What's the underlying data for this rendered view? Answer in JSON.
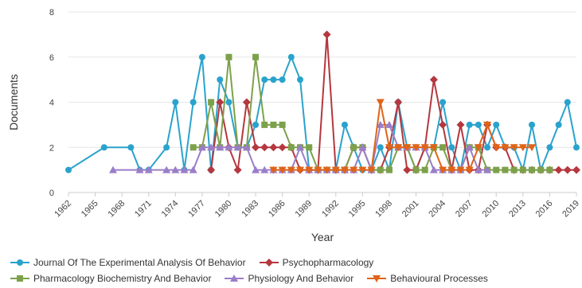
{
  "chart_data": {
    "type": "line",
    "xlabel": "Year",
    "ylabel": "Documents",
    "xlim": [
      1962,
      2019
    ],
    "ylim": [
      0,
      8
    ],
    "yticks": [
      0,
      2,
      4,
      6,
      8
    ],
    "xticks": [
      "1962",
      "1965",
      "1968",
      "1971",
      "1974",
      "1977",
      "1980",
      "1983",
      "1986",
      "1989",
      "1992",
      "1995",
      "1998",
      "2001",
      "2004",
      "2007",
      "2010",
      "2013",
      "2016",
      "2019"
    ],
    "grid": true,
    "legend_position": "bottom",
    "series": [
      {
        "name": "Journal Of The Experimental Analysis Of Behavior",
        "color": "#2aa3cc",
        "marker": "circle",
        "points": [
          [
            1962,
            1
          ],
          [
            1966,
            2
          ],
          [
            1969,
            2
          ],
          [
            1970,
            1
          ],
          [
            1971,
            1
          ],
          [
            1973,
            2
          ],
          [
            1974,
            4
          ],
          [
            1975,
            1
          ],
          [
            1976,
            4
          ],
          [
            1977,
            6
          ],
          [
            1978,
            1
          ],
          [
            1979,
            5
          ],
          [
            1980,
            4
          ],
          [
            1981,
            2
          ],
          [
            1982,
            2
          ],
          [
            1983,
            3
          ],
          [
            1984,
            5
          ],
          [
            1985,
            5
          ],
          [
            1986,
            5
          ],
          [
            1987,
            6
          ],
          [
            1988,
            5
          ],
          [
            1989,
            1
          ],
          [
            1990,
            1
          ],
          [
            1991,
            1
          ],
          [
            1992,
            1
          ],
          [
            1993,
            3
          ],
          [
            1994,
            2
          ],
          [
            1995,
            1
          ],
          [
            1996,
            1
          ],
          [
            1997,
            2
          ],
          [
            1998,
            1
          ],
          [
            1999,
            4
          ],
          [
            2000,
            2
          ],
          [
            2001,
            1
          ],
          [
            2002,
            2
          ],
          [
            2003,
            2
          ],
          [
            2004,
            4
          ],
          [
            2005,
            2
          ],
          [
            2006,
            1
          ],
          [
            2007,
            3
          ],
          [
            2008,
            3
          ],
          [
            2009,
            2
          ],
          [
            2010,
            3
          ],
          [
            2011,
            2
          ],
          [
            2012,
            2
          ],
          [
            2013,
            1
          ],
          [
            2014,
            3
          ],
          [
            2015,
            1
          ],
          [
            2016,
            2
          ],
          [
            2017,
            3
          ],
          [
            2018,
            4
          ],
          [
            2019,
            2
          ]
        ]
      },
      {
        "name": "Psychopharmacology",
        "color": "#b5373f",
        "marker": "diamond",
        "points": [
          [
            1978,
            1
          ],
          [
            1979,
            4
          ],
          [
            1980,
            2
          ],
          [
            1981,
            1
          ],
          [
            1982,
            4
          ],
          [
            1983,
            2
          ],
          [
            1984,
            2
          ],
          [
            1985,
            2
          ],
          [
            1986,
            2
          ],
          [
            1987,
            2
          ],
          [
            1988,
            1
          ],
          [
            1989,
            1
          ],
          [
            1990,
            1
          ],
          [
            1991,
            7
          ],
          [
            1992,
            1
          ],
          [
            1993,
            1
          ],
          [
            1994,
            2
          ],
          [
            1995,
            2
          ],
          [
            1996,
            1
          ],
          [
            1997,
            1
          ],
          [
            1998,
            2
          ],
          [
            1999,
            4
          ],
          [
            2000,
            1
          ],
          [
            2001,
            1
          ],
          [
            2002,
            2
          ],
          [
            2003,
            5
          ],
          [
            2004,
            3
          ],
          [
            2005,
            1
          ],
          [
            2006,
            3
          ],
          [
            2007,
            1
          ],
          [
            2008,
            1
          ],
          [
            2009,
            3
          ],
          [
            2010,
            2
          ],
          [
            2011,
            2
          ],
          [
            2012,
            1
          ],
          [
            2013,
            1
          ],
          [
            2014,
            1
          ],
          [
            2015,
            1
          ],
          [
            2016,
            1
          ],
          [
            2017,
            1
          ],
          [
            2018,
            1
          ],
          [
            2019,
            1
          ]
        ]
      },
      {
        "name": "Pharmacology Biochemistry And Behavior",
        "color": "#7da14b",
        "marker": "square",
        "points": [
          [
            1976,
            2
          ],
          [
            1977,
            2
          ],
          [
            1978,
            4
          ],
          [
            1979,
            2
          ],
          [
            1980,
            6
          ],
          [
            1981,
            2
          ],
          [
            1982,
            2
          ],
          [
            1983,
            6
          ],
          [
            1984,
            3
          ],
          [
            1985,
            3
          ],
          [
            1986,
            3
          ],
          [
            1987,
            2
          ],
          [
            1988,
            2
          ],
          [
            1989,
            2
          ],
          [
            1990,
            1
          ],
          [
            1991,
            1
          ],
          [
            1992,
            1
          ],
          [
            1993,
            1
          ],
          [
            1994,
            2
          ],
          [
            1995,
            2
          ],
          [
            1996,
            1
          ],
          [
            1997,
            1
          ],
          [
            1998,
            1
          ],
          [
            1999,
            2
          ],
          [
            2000,
            2
          ],
          [
            2001,
            1
          ],
          [
            2002,
            1
          ],
          [
            2003,
            2
          ],
          [
            2004,
            2
          ],
          [
            2005,
            1
          ],
          [
            2006,
            1
          ],
          [
            2007,
            2
          ],
          [
            2008,
            2
          ],
          [
            2009,
            1
          ],
          [
            2010,
            1
          ],
          [
            2011,
            1
          ],
          [
            2012,
            1
          ],
          [
            2013,
            1
          ],
          [
            2014,
            1
          ],
          [
            2015,
            1
          ],
          [
            2016,
            1
          ]
        ]
      },
      {
        "name": "Physiology And Behavior",
        "color": "#9b7ec8",
        "marker": "triangle",
        "points": [
          [
            1967,
            1
          ],
          [
            1970,
            1
          ],
          [
            1971,
            1
          ],
          [
            1973,
            1
          ],
          [
            1974,
            1
          ],
          [
            1975,
            1
          ],
          [
            1976,
            1
          ],
          [
            1977,
            2
          ],
          [
            1978,
            2
          ],
          [
            1979,
            2
          ],
          [
            1980,
            2
          ],
          [
            1981,
            2
          ],
          [
            1982,
            2
          ],
          [
            1983,
            1
          ],
          [
            1984,
            1
          ],
          [
            1985,
            1
          ],
          [
            1986,
            1
          ],
          [
            1987,
            1
          ],
          [
            1988,
            2
          ],
          [
            1989,
            1
          ],
          [
            1990,
            1
          ],
          [
            1991,
            1
          ],
          [
            1992,
            1
          ],
          [
            1993,
            1
          ],
          [
            1994,
            1
          ],
          [
            1995,
            2
          ],
          [
            1996,
            1
          ],
          [
            1997,
            3
          ],
          [
            1998,
            3
          ],
          [
            1999,
            2
          ],
          [
            2000,
            2
          ],
          [
            2001,
            2
          ],
          [
            2002,
            2
          ],
          [
            2003,
            1
          ],
          [
            2004,
            1
          ],
          [
            2005,
            1
          ],
          [
            2006,
            1
          ],
          [
            2007,
            2
          ],
          [
            2008,
            1
          ],
          [
            2009,
            1
          ]
        ]
      },
      {
        "name": "Behavioural Processes",
        "color": "#e06418",
        "marker": "triangle-down",
        "points": [
          [
            1985,
            1
          ],
          [
            1986,
            1
          ],
          [
            1987,
            1
          ],
          [
            1988,
            1
          ],
          [
            1989,
            1
          ],
          [
            1990,
            1
          ],
          [
            1991,
            1
          ],
          [
            1992,
            1
          ],
          [
            1993,
            1
          ],
          [
            1994,
            1
          ],
          [
            1995,
            1
          ],
          [
            1996,
            1
          ],
          [
            1997,
            4
          ],
          [
            1998,
            2
          ],
          [
            1999,
            2
          ],
          [
            2000,
            2
          ],
          [
            2001,
            2
          ],
          [
            2002,
            2
          ],
          [
            2003,
            2
          ],
          [
            2004,
            1
          ],
          [
            2005,
            1
          ],
          [
            2006,
            1
          ],
          [
            2007,
            1
          ],
          [
            2008,
            2
          ],
          [
            2009,
            3
          ],
          [
            2010,
            2
          ],
          [
            2011,
            2
          ],
          [
            2012,
            2
          ],
          [
            2013,
            2
          ],
          [
            2014,
            2
          ]
        ]
      }
    ]
  }
}
